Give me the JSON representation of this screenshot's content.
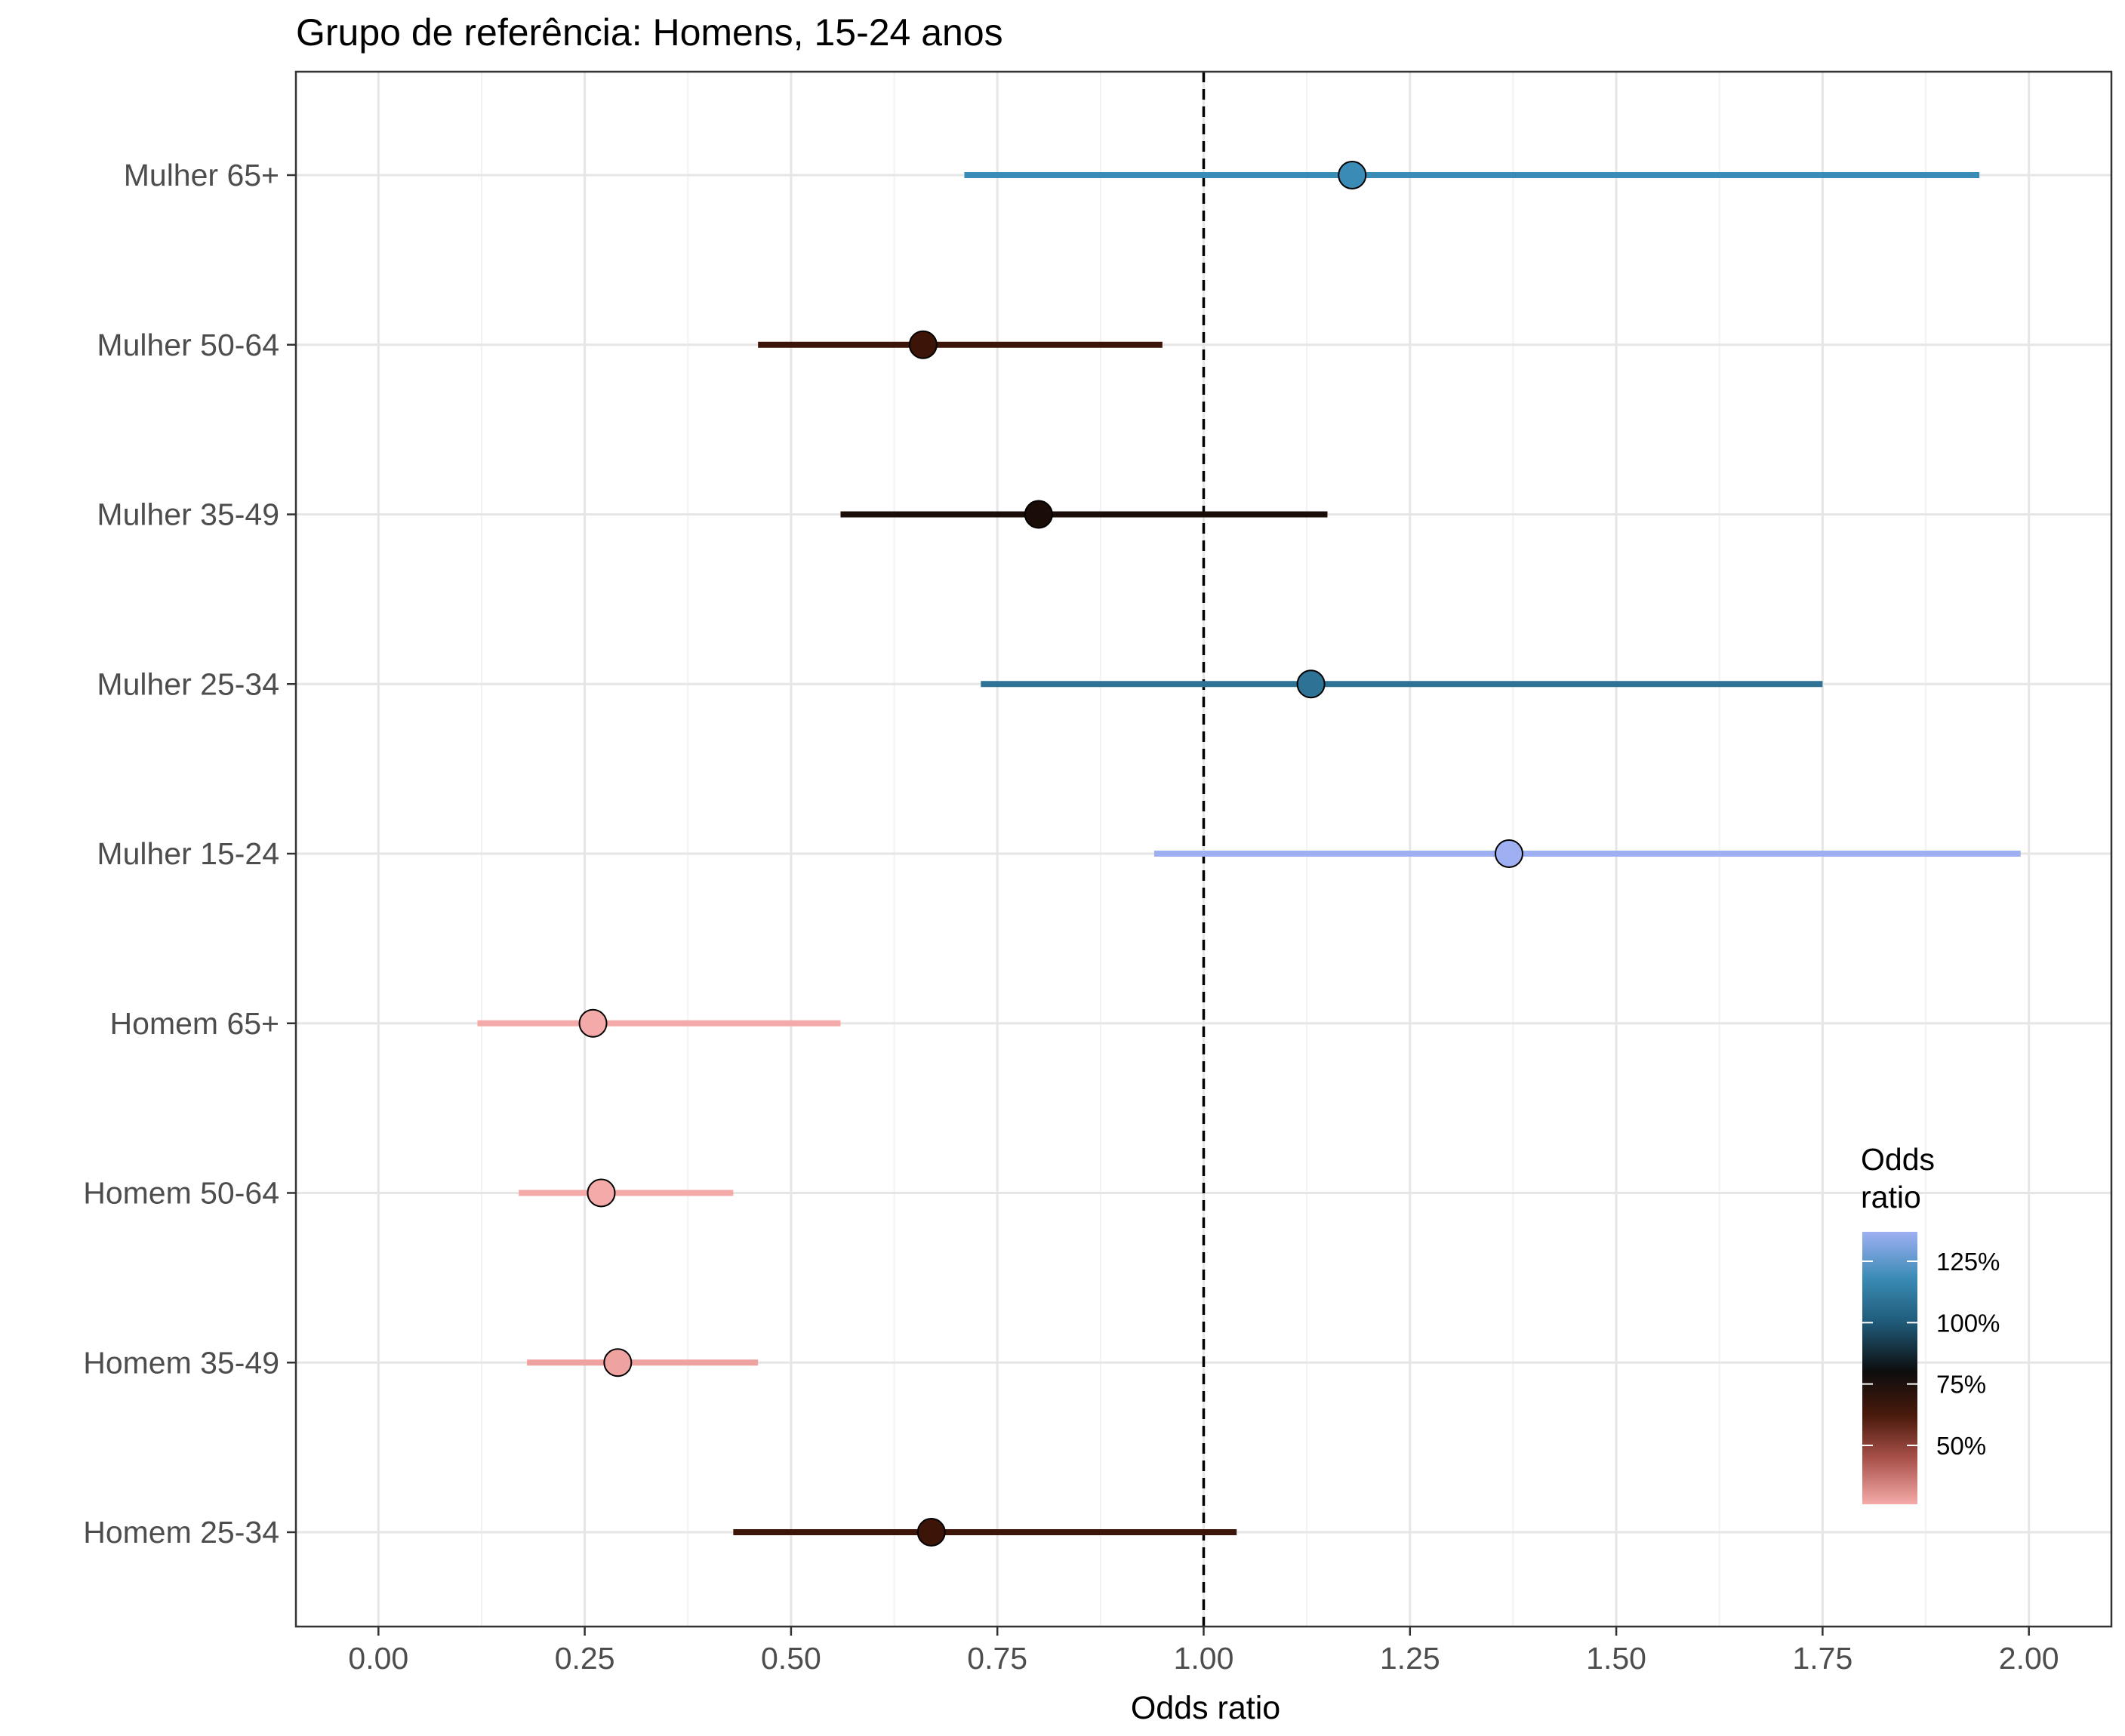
{
  "chart_data": {
    "type": "scatter",
    "title": "Grupo de referência: Homens, 15-24 anos",
    "xlabel": "Odds ratio",
    "ylabel": "",
    "xlim": [
      -0.1,
      2.1
    ],
    "x_ticks": [
      "0.00",
      "0.25",
      "0.50",
      "0.75",
      "1.00",
      "1.25",
      "1.50",
      "1.75",
      "2.00"
    ],
    "x_tick_values": [
      0,
      0.25,
      0.5,
      0.75,
      1.0,
      1.25,
      1.5,
      1.75,
      2.0
    ],
    "reference_line": 1.0,
    "grid": true,
    "categories": [
      "Mulher 65+",
      "Mulher 50-64",
      "Mulher 35-49",
      "Mulher 25-34",
      "Mulher 15-24",
      "Homem 65+",
      "Homem 50-64",
      "Homem 35-49",
      "Homem 25-34"
    ],
    "points": [
      {
        "label": "Mulher 65+",
        "estimate": 1.18,
        "lower": 0.71,
        "upper": 1.94,
        "color": "#3a8bb5"
      },
      {
        "label": "Mulher 50-64",
        "estimate": 0.66,
        "lower": 0.46,
        "upper": 0.95,
        "color": "#3d1408"
      },
      {
        "label": "Mulher 35-49",
        "estimate": 0.8,
        "lower": 0.56,
        "upper": 1.15,
        "color": "#1a0c07"
      },
      {
        "label": "Mulher 25-34",
        "estimate": 1.13,
        "lower": 0.73,
        "upper": 1.75,
        "color": "#2e7396"
      },
      {
        "label": "Mulher 15-24",
        "estimate": 1.37,
        "lower": 0.94,
        "upper": 1.99,
        "color": "#9eb0f2"
      },
      {
        "label": "Homem 65+",
        "estimate": 0.26,
        "lower": 0.12,
        "upper": 0.56,
        "color": "#f4aaa8"
      },
      {
        "label": "Homem 50-64",
        "estimate": 0.27,
        "lower": 0.17,
        "upper": 0.43,
        "color": "#f4aaa8"
      },
      {
        "label": "Homem 35-49",
        "estimate": 0.29,
        "lower": 0.18,
        "upper": 0.46,
        "color": "#eea3a1"
      },
      {
        "label": "Homem 25-34",
        "estimate": 0.67,
        "lower": 0.43,
        "upper": 1.04,
        "color": "#3d1408"
      }
    ],
    "legend": {
      "title_lines": [
        "Odds",
        "ratio"
      ],
      "placement": "bottom-right",
      "labels": [
        "125%",
        "100%",
        "75%",
        "50%"
      ],
      "label_values": [
        1.25,
        1.0,
        0.75,
        0.5
      ],
      "range": [
        0.26,
        1.37
      ],
      "gradient_stops": [
        {
          "value": 0.26,
          "color": "#f4aaa8"
        },
        {
          "value": 0.45,
          "color": "#a8504a"
        },
        {
          "value": 0.62,
          "color": "#4a1a0c"
        },
        {
          "value": 0.8,
          "color": "#0d0d0d"
        },
        {
          "value": 1.0,
          "color": "#1f5a78"
        },
        {
          "value": 1.18,
          "color": "#3a8bb5"
        },
        {
          "value": 1.37,
          "color": "#9eb0f2"
        }
      ]
    }
  }
}
